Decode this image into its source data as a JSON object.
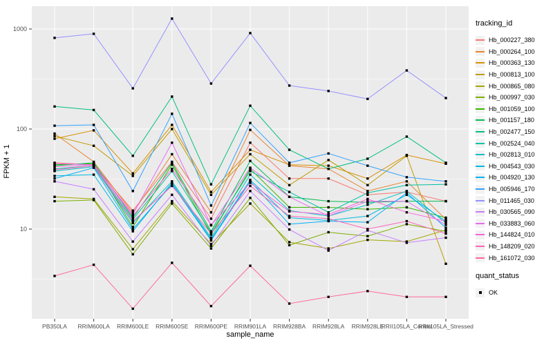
{
  "chart_data": {
    "type": "line",
    "title": "",
    "xlabel": "sample_name",
    "ylabel": "FPKM + 1",
    "y_scale": "log10",
    "y_ticks": [
      10,
      100,
      1000
    ],
    "y_minor_ticks": [
      3.162,
      31.62,
      316.2
    ],
    "ylim": [
      1.3,
      1700
    ],
    "grid": "on",
    "legend_position": "right",
    "legend_title": "tracking_id",
    "point_legend": {
      "title": "quant_status",
      "label": "OK"
    },
    "panel_background": "#EBEBEB",
    "grid_color": "#FFFFFF",
    "point_color": "#000000",
    "tick_label_color": "#4D4D4D",
    "categories": [
      "PB350LA",
      "RRIM600LA",
      "RRIM600LE",
      "RRIM600SE",
      "RRIM600PE",
      "RRIM901LA",
      "RRIM928BA",
      "RRIM928LA",
      "RRIM928LE",
      "RRII105LA_Control",
      "RRII105LA_Stressed"
    ],
    "series": [
      {
        "name": "Hb_000227_380",
        "color": "#F8766D",
        "values": [
          46,
          44,
          15.3,
          47,
          12.7,
          73,
          32,
          32,
          22,
          23.5,
          19
        ]
      },
      {
        "name": "Hb_000264_100",
        "color": "#EA8331",
        "values": [
          90,
          47,
          14.5,
          56,
          14.7,
          98,
          43,
          40,
          24,
          30,
          12.5
        ]
      },
      {
        "name": "Hb_000363_130",
        "color": "#D89000",
        "values": [
          80,
          97,
          36,
          110,
          23.5,
          62,
          44,
          43,
          32,
          55,
          45
        ]
      },
      {
        "name": "Hb_000813_100",
        "color": "#C09B00",
        "values": [
          85,
          68,
          34,
          100,
          22,
          56,
          27.5,
          49,
          27.5,
          54,
          4.5
        ]
      },
      {
        "name": "Hb_000865_080",
        "color": "#A3A500",
        "values": [
          21,
          20,
          6.3,
          19,
          7.1,
          18,
          7.4,
          6.4,
          7.8,
          7.5,
          9.8
        ]
      },
      {
        "name": "Hb_000997_030",
        "color": "#7CAE00",
        "values": [
          19,
          19.5,
          5.6,
          18,
          6.4,
          20.5,
          6.9,
          9.3,
          8.5,
          11.2,
          9.5
        ]
      },
      {
        "name": "Hb_001059_100",
        "color": "#39B600",
        "values": [
          44,
          45,
          10.5,
          44,
          8.8,
          40,
          16.5,
          16.5,
          15.8,
          16.5,
          13
        ]
      },
      {
        "name": "Hb_001157_180",
        "color": "#00BB4E",
        "values": [
          43,
          46,
          13,
          46,
          9.5,
          48,
          21,
          19,
          18.5,
          19,
          19
        ]
      },
      {
        "name": "Hb_002477_150",
        "color": "#00BF7D",
        "values": [
          168,
          155,
          54,
          211,
          28,
          171,
          62,
          40,
          50.5,
          84,
          46
        ]
      },
      {
        "name": "Hb_002524_040",
        "color": "#00C1A3",
        "values": [
          40,
          43,
          12.5,
          38,
          9.2,
          38,
          23.5,
          14.7,
          23,
          27.5,
          28
        ]
      },
      {
        "name": "Hb_002813_010",
        "color": "#00BFC4",
        "values": [
          38,
          42,
          11.5,
          30,
          8.2,
          35,
          15.3,
          13.5,
          17.5,
          24,
          11.5
        ]
      },
      {
        "name": "Hb_004543_030",
        "color": "#00BAE0",
        "values": [
          34,
          35,
          9.5,
          29,
          7.9,
          31,
          13,
          12.2,
          13.5,
          22,
          12
        ]
      },
      {
        "name": "Hb_004920_130",
        "color": "#00B0F6",
        "values": [
          32,
          41,
          10,
          28,
          7.7,
          30,
          11.2,
          12,
          11.7,
          23,
          10.3
        ]
      },
      {
        "name": "Hb_005946_170",
        "color": "#35A2FF",
        "values": [
          108,
          110,
          24,
          142,
          17.2,
          115,
          46,
          57,
          43,
          33,
          30
        ]
      },
      {
        "name": "Hb_011465_030",
        "color": "#9590FF",
        "values": [
          815,
          895,
          255,
          1270,
          285,
          910,
          272,
          240,
          200,
          385,
          204
        ]
      },
      {
        "name": "Hb_030565_090",
        "color": "#C77CFF",
        "values": [
          30,
          25,
          7.5,
          22,
          6.8,
          24,
          9.9,
          6.1,
          9.7,
          7.3,
          8.2
        ]
      },
      {
        "name": "Hb_033883_060",
        "color": "#E76BF3",
        "values": [
          45,
          44,
          14,
          73,
          10.9,
          41,
          21,
          13.5,
          19,
          19,
          11
        ]
      },
      {
        "name": "Hb_144824_010",
        "color": "#FA62DB",
        "values": [
          42,
          44,
          13.5,
          40,
          11,
          29,
          15,
          14,
          20,
          14.7,
          12
        ]
      },
      {
        "name": "Hb_148209_020",
        "color": "#FF62BC",
        "values": [
          39,
          43,
          12,
          27,
          9,
          27,
          13.5,
          12.7,
          10,
          12,
          9
        ]
      },
      {
        "name": "Hb_161072_030",
        "color": "#FF6A98",
        "values": [
          3.4,
          4.4,
          1.6,
          4.6,
          1.7,
          4.3,
          1.8,
          2.1,
          2.4,
          2.1,
          2.1
        ]
      }
    ]
  }
}
